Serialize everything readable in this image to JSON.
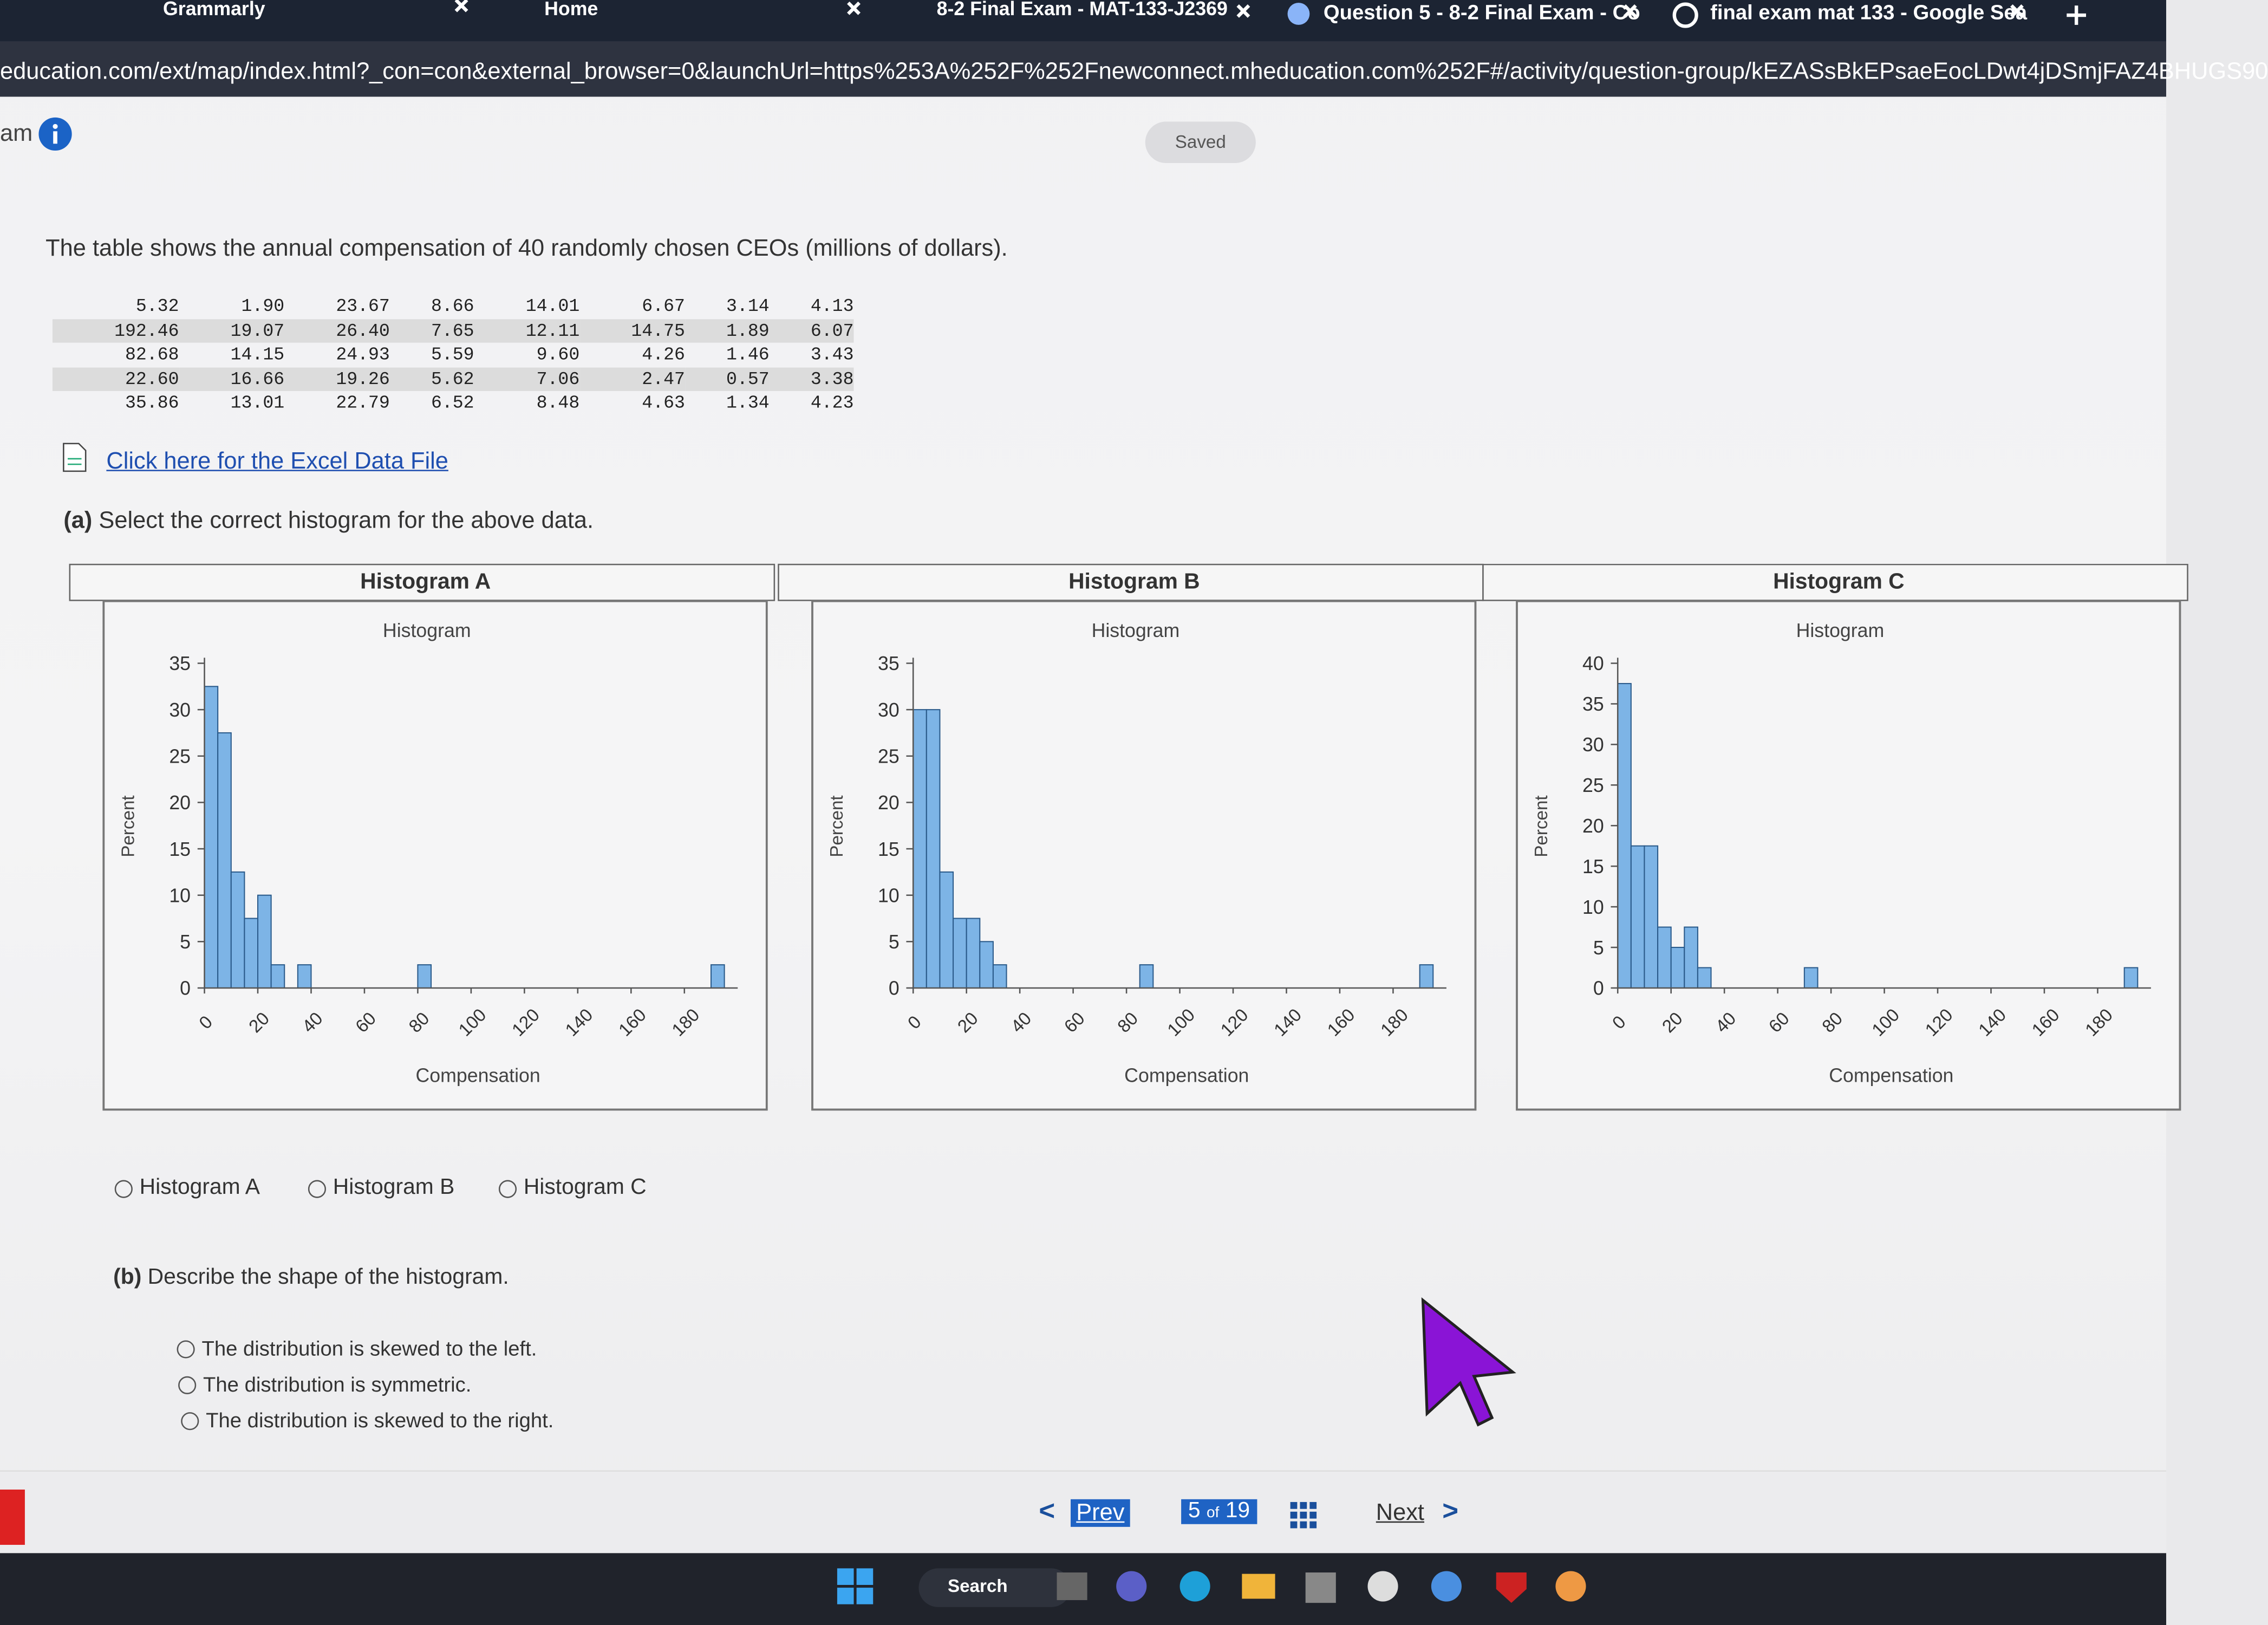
{
  "browser": {
    "tabs": [
      "Grammarly",
      "Home",
      "8-2 Final Exam - MAT-133-J2369",
      "Question 5 - 8-2 Final Exam - Co",
      "final exam mat 133 - Google Sea"
    ],
    "url": "education.com/ext/map/index.html?_con=con&external_browser=0&launchUrl=https%253A%252F%252Fnewconnect.mheducation.com%252F#/activity/question-group/kEZASsBkEPsaeEocLDwt4jDSmjFAZ4BHUGS90"
  },
  "header": {
    "title_fragment": "am",
    "status": "Saved"
  },
  "question": {
    "intro": "The table shows the annual compensation of 40 randomly chosen CEOs (millions of dollars).",
    "table": {
      "rows": [
        [
          "5.32",
          "1.90",
          "23.67",
          "8.66",
          "14.01",
          "6.67",
          "3.14",
          "4.13"
        ],
        [
          "192.46",
          "19.07",
          "26.40",
          "7.65",
          "12.11",
          "14.75",
          "1.89",
          "6.07"
        ],
        [
          "82.68",
          "14.15",
          "24.93",
          "5.59",
          "9.60",
          "4.26",
          "1.46",
          "3.43"
        ],
        [
          "22.60",
          "16.66",
          "19.26",
          "5.62",
          "7.06",
          "2.47",
          "0.57",
          "3.38"
        ],
        [
          "35.86",
          "13.01",
          "22.79",
          "6.52",
          "8.48",
          "4.63",
          "1.34",
          "4.23"
        ]
      ]
    },
    "link": "Click here for the Excel Data File",
    "part_a": {
      "label": "(a)",
      "text": "Select the correct histogram for the above data."
    },
    "histograms": [
      {
        "type": "histogram",
        "panel_title": "Histogram A",
        "title": "Histogram",
        "ylabel": "Percent",
        "xlabel": "Compensation",
        "color": "#7db4e6",
        "bins": [
          0,
          5,
          10,
          15,
          20,
          25,
          30,
          35,
          40,
          45,
          50,
          55,
          60,
          65,
          70,
          75,
          80,
          85,
          90,
          95,
          100,
          105,
          110,
          115,
          120,
          125,
          130,
          135,
          140,
          145,
          150,
          155,
          160,
          165,
          170,
          175,
          180,
          185,
          190,
          195
        ],
        "values": [
          32.5,
          27.5,
          12.5,
          7.5,
          10,
          2.5,
          0,
          2.5,
          0,
          0,
          0,
          0,
          0,
          0,
          0,
          0,
          2.5,
          0,
          0,
          0,
          0,
          0,
          0,
          0,
          0,
          0,
          0,
          0,
          0,
          0,
          0,
          0,
          0,
          0,
          0,
          0,
          0,
          0,
          2.5
        ],
        "xlim": [
          0,
          200
        ],
        "xticks": [
          0,
          20,
          40,
          60,
          80,
          100,
          120,
          140,
          160,
          180
        ],
        "ylim": [
          0,
          35
        ],
        "yticks": [
          0,
          5,
          10,
          15,
          20,
          25,
          30,
          35
        ]
      },
      {
        "type": "histogram",
        "panel_title": "Histogram B",
        "title": "Histogram",
        "ylabel": "Percent",
        "xlabel": "Compensation",
        "color": "#7db4e6",
        "bins": [
          0,
          5,
          10,
          15,
          20,
          25,
          30,
          35,
          40,
          45,
          50,
          55,
          60,
          65,
          70,
          75,
          80,
          85,
          90,
          95,
          100,
          105,
          110,
          115,
          120,
          125,
          130,
          135,
          140,
          145,
          150,
          155,
          160,
          165,
          170,
          175,
          180,
          185,
          190,
          195
        ],
        "values": [
          30,
          30,
          12.5,
          7.5,
          7.5,
          5,
          2.5,
          0,
          0,
          0,
          0,
          0,
          0,
          0,
          0,
          0,
          0,
          2.5,
          0,
          0,
          0,
          0,
          0,
          0,
          0,
          0,
          0,
          0,
          0,
          0,
          0,
          0,
          0,
          0,
          0,
          0,
          0,
          0,
          2.5
        ],
        "xlim": [
          0,
          200
        ],
        "xticks": [
          0,
          20,
          40,
          60,
          80,
          100,
          120,
          140,
          160,
          180
        ],
        "ylim": [
          0,
          35
        ],
        "yticks": [
          0,
          5,
          10,
          15,
          20,
          25,
          30,
          35
        ]
      },
      {
        "type": "histogram",
        "panel_title": "Histogram C",
        "title": "Histogram",
        "ylabel": "Percent",
        "xlabel": "Compensation",
        "color": "#7db4e6",
        "bins": [
          0,
          5,
          10,
          15,
          20,
          25,
          30,
          35,
          40,
          45,
          50,
          55,
          60,
          65,
          70,
          75,
          80,
          85,
          90,
          95,
          100,
          105,
          110,
          115,
          120,
          125,
          130,
          135,
          140,
          145,
          150,
          155,
          160,
          165,
          170,
          175,
          180,
          185,
          190,
          195
        ],
        "values": [
          37.5,
          17.5,
          17.5,
          7.5,
          5,
          7.5,
          2.5,
          0,
          0,
          0,
          0,
          0,
          0,
          0,
          2.5,
          0,
          0,
          0,
          0,
          0,
          0,
          0,
          0,
          0,
          0,
          0,
          0,
          0,
          0,
          0,
          0,
          0,
          0,
          0,
          0,
          0,
          0,
          0,
          2.5
        ],
        "xlim": [
          0,
          200
        ],
        "xticks": [
          0,
          20,
          40,
          60,
          80,
          100,
          120,
          140,
          160,
          180
        ],
        "ylim": [
          0,
          40
        ],
        "yticks": [
          0,
          5,
          10,
          15,
          20,
          25,
          30,
          35,
          40
        ]
      }
    ],
    "options_a": [
      "Histogram A",
      "Histogram B",
      "Histogram C"
    ],
    "part_b": {
      "label": "(b)",
      "text": "Describe the shape of the histogram."
    },
    "options_b": [
      "The distribution is skewed to the left.",
      "The distribution is symmetric.",
      "The distribution is skewed to the right."
    ]
  },
  "nav": {
    "prev": "Prev",
    "current": "5",
    "of": "of",
    "total": "19",
    "next": "Next"
  },
  "taskbar": {
    "search": "Search"
  }
}
